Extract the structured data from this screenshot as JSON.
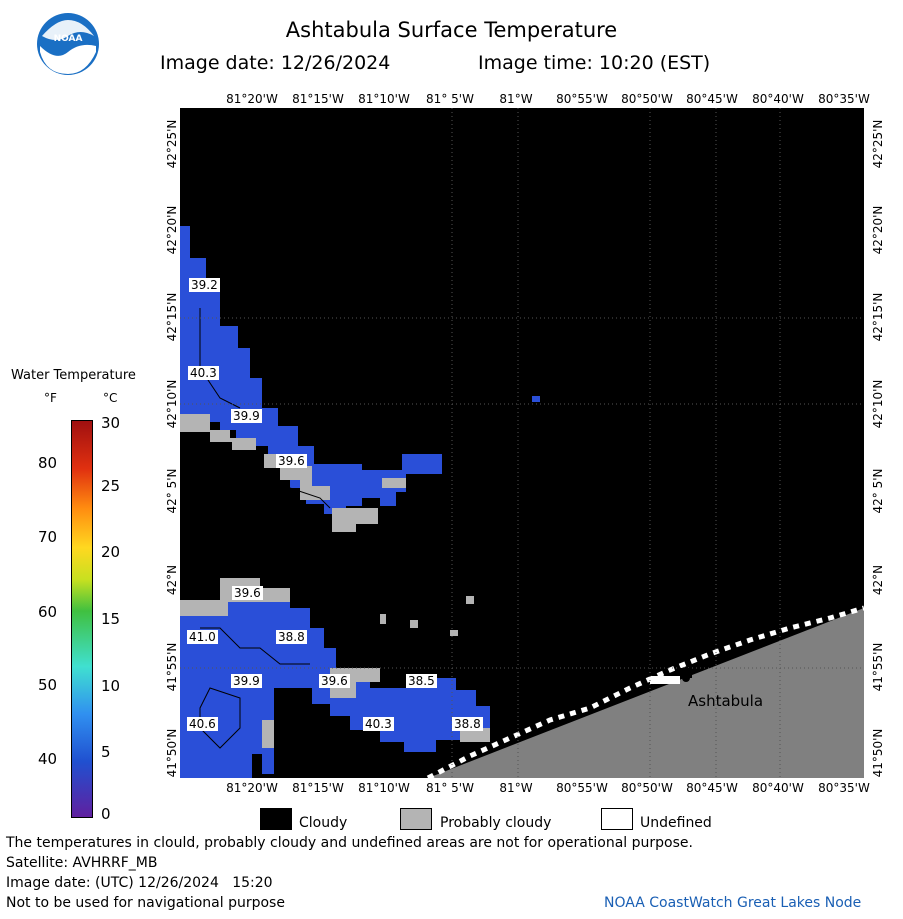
{
  "header": {
    "title": "Ashtabula Surface Temperature",
    "image_date": "Image date: 12/26/2024",
    "image_time": "Image time: 10:20 (EST)"
  },
  "logo": {
    "text": "NOAA"
  },
  "longitudes": [
    "81°20'W",
    "81°15'W",
    "81°10'W",
    "81° 5'W",
    "81°W",
    "80°55'W",
    "80°50'W",
    "80°45'W",
    "80°40'W",
    "80°35'W"
  ],
  "latitudes": [
    "42°25'N",
    "42°20'N",
    "42°15'N",
    "42°10'N",
    "42° 5'N",
    "42°N",
    "41°55'N",
    "41°50'N"
  ],
  "map": {
    "city": "Ashtabula",
    "temp_labels": [
      "39.2",
      "40.3",
      "39.9",
      "39.6",
      "39.6",
      "41.0",
      "38.8",
      "39.9",
      "39.6",
      "38.5",
      "40.3",
      "38.8",
      "40.6"
    ]
  },
  "legend": {
    "title": "Water Temperature",
    "unit_f": "°F",
    "unit_c": "°C",
    "f_ticks": [
      "80",
      "70",
      "60",
      "50",
      "40"
    ],
    "c_ticks": [
      "30",
      "25",
      "20",
      "15",
      "10",
      "5",
      "0"
    ],
    "colors": [
      "#a01010",
      "#e03010",
      "#ff8c10",
      "#ffd820",
      "#c8e020",
      "#40c040",
      "#40e0d0",
      "#3090f0",
      "#2050d0",
      "#6020a0"
    ]
  },
  "key": {
    "cloudy": "Cloudy",
    "probably_cloudy": "Probably cloudy",
    "undefined": "Undefined"
  },
  "footer": {
    "note": "The temperatures in clould, probably cloudy and undefined areas are not for operational purpose.",
    "satellite": "Satellite: AVHRRF_MB",
    "utc_date": "Image date: (UTC) 12/26/2024   15:20",
    "nav": "Not to be used for navigational purpose",
    "credit": "NOAA CoastWatch Great Lakes Node"
  }
}
